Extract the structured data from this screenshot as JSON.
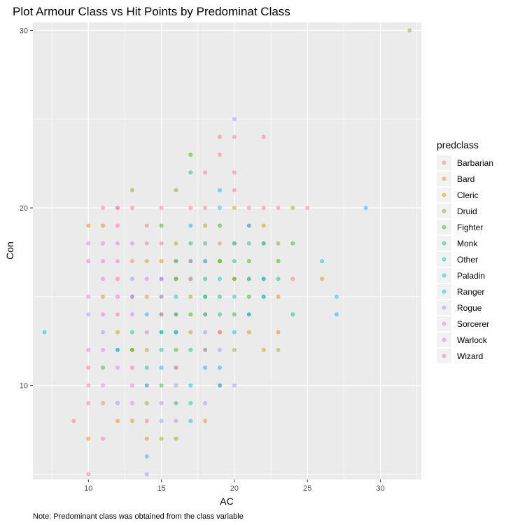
{
  "chart_data": {
    "type": "scatter",
    "title": "Plot Armour Class vs Hit Points by Predominat Class",
    "xlabel": "AC",
    "ylabel": "Con",
    "xlim": [
      6.2,
      32.8
    ],
    "ylim": [
      4.7,
      30.45
    ],
    "x_ticks": [
      10,
      15,
      20,
      25,
      30
    ],
    "y_ticks": [
      10,
      20,
      30
    ],
    "x_tick_labels": [
      "10",
      "15",
      "20",
      "25",
      "30"
    ],
    "y_tick_labels": [
      "10",
      "20",
      "30"
    ],
    "grid": true,
    "legend_title": "predclass",
    "legend_position": "right",
    "note": "Note: Predominant class was obtained from the class variable",
    "series": [
      {
        "name": "Barbarian",
        "color": "#F8766D",
        "points": [
          [
            9,
            8
          ],
          [
            10,
            10
          ],
          [
            12,
            20
          ],
          [
            13,
            20
          ],
          [
            15,
            20
          ],
          [
            17,
            20
          ],
          [
            18,
            20
          ],
          [
            19,
            23
          ],
          [
            19,
            24
          ],
          [
            21,
            20
          ],
          [
            22,
            20
          ],
          [
            22,
            24
          ],
          [
            23,
            20
          ],
          [
            24,
            16
          ],
          [
            25,
            20
          ],
          [
            11,
            9
          ],
          [
            13,
            17
          ],
          [
            14,
            19
          ],
          [
            16,
            16
          ],
          [
            18,
            17
          ],
          [
            19,
            18
          ],
          [
            20,
            16
          ],
          [
            21,
            19
          ]
        ]
      },
      {
        "name": "Bard",
        "color": "#E18A00",
        "points": [
          [
            10,
            7
          ],
          [
            10,
            19
          ],
          [
            11,
            19
          ],
          [
            12,
            8
          ],
          [
            14,
            7
          ],
          [
            15,
            17
          ],
          [
            16,
            14
          ],
          [
            16,
            17
          ],
          [
            18,
            8
          ],
          [
            21,
            13
          ],
          [
            22,
            12
          ],
          [
            23,
            13
          ],
          [
            23,
            15
          ],
          [
            26,
            16
          ],
          [
            13,
            12
          ],
          [
            14,
            15
          ],
          [
            17,
            16
          ],
          [
            19,
            13
          ]
        ]
      },
      {
        "name": "Cleric",
        "color": "#BE9C00",
        "points": [
          [
            11,
            15
          ],
          [
            12,
            13
          ],
          [
            13,
            8
          ],
          [
            14,
            17
          ],
          [
            15,
            15
          ],
          [
            16,
            18
          ],
          [
            17,
            13
          ],
          [
            18,
            19
          ],
          [
            19,
            17
          ],
          [
            20,
            20
          ],
          [
            21,
            16
          ],
          [
            22,
            19
          ],
          [
            23,
            12
          ],
          [
            14,
            12
          ],
          [
            16,
            11
          ],
          [
            18,
            14
          ],
          [
            20,
            18
          ]
        ]
      },
      {
        "name": "Druid",
        "color": "#8CAB00",
        "points": [
          [
            13,
            21
          ],
          [
            15,
            7
          ],
          [
            16,
            21
          ],
          [
            16,
            7
          ],
          [
            20,
            12
          ],
          [
            22,
            18
          ],
          [
            23,
            18
          ],
          [
            24,
            20
          ],
          [
            32,
            30
          ],
          [
            14,
            9
          ],
          [
            17,
            15
          ],
          [
            19,
            10
          ]
        ]
      },
      {
        "name": "Fighter",
        "color": "#24B700",
        "points": [
          [
            11,
            11
          ],
          [
            13,
            12
          ],
          [
            15,
            19
          ],
          [
            16,
            16
          ],
          [
            17,
            17
          ],
          [
            17,
            14
          ],
          [
            18,
            15
          ],
          [
            18,
            12
          ],
          [
            19,
            17
          ],
          [
            19,
            19
          ],
          [
            20,
            14
          ],
          [
            20,
            16
          ],
          [
            21,
            15
          ],
          [
            21,
            17
          ],
          [
            22,
            16
          ],
          [
            23,
            17
          ],
          [
            24,
            18
          ],
          [
            17,
            23
          ],
          [
            16,
            12
          ],
          [
            15,
            10
          ]
        ]
      },
      {
        "name": "Monk",
        "color": "#00BE70",
        "points": [
          [
            14,
            10
          ],
          [
            15,
            12
          ],
          [
            15,
            13
          ],
          [
            16,
            13
          ],
          [
            17,
            12
          ],
          [
            17,
            18
          ],
          [
            18,
            16
          ],
          [
            18,
            18
          ],
          [
            19,
            14
          ],
          [
            19,
            15
          ],
          [
            20,
            17
          ],
          [
            21,
            14
          ],
          [
            22,
            15
          ],
          [
            23,
            16
          ],
          [
            24,
            14
          ],
          [
            17,
            22
          ],
          [
            16,
            9
          ]
        ]
      },
      {
        "name": "Other",
        "color": "#00C1AB",
        "points": [
          [
            7,
            13
          ],
          [
            14,
            11
          ],
          [
            15,
            14
          ],
          [
            16,
            14
          ],
          [
            16,
            17
          ],
          [
            17,
            9
          ],
          [
            18,
            15
          ],
          [
            19,
            16
          ],
          [
            20,
            15
          ],
          [
            21,
            18
          ],
          [
            22,
            18
          ],
          [
            21,
            16
          ],
          [
            13,
            13
          ],
          [
            12,
            12
          ]
        ]
      },
      {
        "name": "Paladin",
        "color": "#00BBDA",
        "points": [
          [
            14,
            6
          ],
          [
            15,
            13
          ],
          [
            16,
            15
          ],
          [
            17,
            19
          ],
          [
            18,
            17
          ],
          [
            19,
            20
          ],
          [
            19,
            21
          ],
          [
            20,
            18
          ],
          [
            21,
            19
          ],
          [
            22,
            15
          ],
          [
            26,
            17
          ],
          [
            27,
            15
          ],
          [
            27,
            14
          ],
          [
            17,
            8
          ],
          [
            18,
            14
          ]
        ]
      },
      {
        "name": "Ranger",
        "color": "#00ACFC",
        "points": [
          [
            12,
            12
          ],
          [
            13,
            15
          ],
          [
            14,
            14
          ],
          [
            15,
            11
          ],
          [
            16,
            13
          ],
          [
            17,
            10
          ],
          [
            18,
            11
          ],
          [
            19,
            11
          ],
          [
            19,
            10
          ],
          [
            20,
            13
          ],
          [
            21,
            14
          ],
          [
            22,
            16
          ],
          [
            29,
            20
          ],
          [
            15,
            16
          ]
        ]
      },
      {
        "name": "Rogue",
        "color": "#8B93FF",
        "points": [
          [
            10,
            14
          ],
          [
            11,
            13
          ],
          [
            12,
            9
          ],
          [
            13,
            16
          ],
          [
            14,
            10
          ],
          [
            14,
            5
          ],
          [
            15,
            8
          ],
          [
            15,
            15
          ],
          [
            16,
            10
          ],
          [
            17,
            16
          ],
          [
            18,
            9
          ],
          [
            19,
            12
          ],
          [
            20,
            25
          ],
          [
            20,
            10
          ],
          [
            18,
            13
          ]
        ]
      },
      {
        "name": "Sorcerer",
        "color": "#D575FE",
        "points": [
          [
            10,
            18
          ],
          [
            11,
            10
          ],
          [
            11,
            18
          ],
          [
            12,
            11
          ],
          [
            13,
            14
          ],
          [
            13,
            9
          ],
          [
            14,
            16
          ],
          [
            15,
            9
          ],
          [
            16,
            8
          ],
          [
            16,
            11
          ],
          [
            17,
            17
          ],
          [
            18,
            12
          ]
        ]
      },
      {
        "name": "Warlock",
        "color": "#F962DD",
        "points": [
          [
            10,
            12
          ],
          [
            10,
            15
          ],
          [
            10,
            17
          ],
          [
            11,
            14
          ],
          [
            11,
            16
          ],
          [
            11,
            17
          ],
          [
            12,
            15
          ],
          [
            12,
            17
          ],
          [
            12,
            18
          ],
          [
            12,
            20
          ],
          [
            13,
            18
          ],
          [
            14,
            13
          ],
          [
            15,
            16
          ],
          [
            13,
            10
          ],
          [
            11,
            12
          ]
        ]
      },
      {
        "name": "Wizard",
        "color": "#FF65AC",
        "points": [
          [
            10,
            5
          ],
          [
            10,
            9
          ],
          [
            10,
            11
          ],
          [
            11,
            7
          ],
          [
            11,
            20
          ],
          [
            12,
            14
          ],
          [
            12,
            16
          ],
          [
            12,
            19
          ],
          [
            13,
            11
          ],
          [
            13,
            15
          ],
          [
            14,
            18
          ],
          [
            15,
            18
          ],
          [
            15,
            14
          ],
          [
            20,
            24
          ],
          [
            20,
            22
          ],
          [
            20,
            21
          ],
          [
            18,
            22
          ],
          [
            19,
            13
          ],
          [
            14,
            8
          ]
        ]
      }
    ]
  }
}
